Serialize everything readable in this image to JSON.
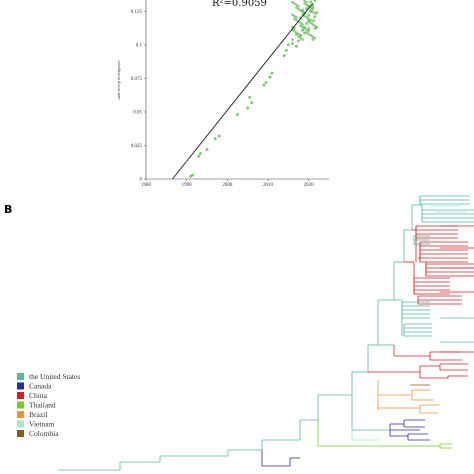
{
  "panel_b_label": "B",
  "chart_data": {
    "type": "scatter",
    "title": "",
    "xlabel": "",
    "ylabel": "root-to-tip divergence",
    "xlim": [
      1980,
      2025
    ],
    "ylim": [
      0,
      0.135
    ],
    "x_ticks": [
      "1980",
      "1990",
      "2000",
      "2010",
      "2020"
    ],
    "y_ticks": [
      "0",
      "0.025",
      "0.05",
      "0.075",
      "0.1",
      "0.125"
    ],
    "annotation": "R²=0.9059",
    "grid": false,
    "point_color": "#6abf62",
    "line_color": "#1a1a1a",
    "regression": {
      "x0_intercept": 1986.5,
      "x_end": 2021,
      "y_end": 0.131
    },
    "points": [
      [
        1991,
        0.002
      ],
      [
        1991.5,
        0.003
      ],
      [
        1993,
        0.017
      ],
      [
        1993.4,
        0.019
      ],
      [
        1995,
        0.022
      ],
      [
        1997,
        0.03
      ],
      [
        1998,
        0.032
      ],
      [
        2002.5,
        0.048
      ],
      [
        2005,
        0.053
      ],
      [
        2006,
        0.057
      ],
      [
        2005.5,
        0.061
      ],
      [
        2009,
        0.07
      ],
      [
        2009.5,
        0.072
      ],
      [
        2010.5,
        0.076
      ],
      [
        2011,
        0.079
      ],
      [
        2014,
        0.092
      ],
      [
        2014.5,
        0.096
      ],
      [
        2015,
        0.1
      ],
      [
        2016,
        0.101
      ],
      [
        2017,
        0.099
      ],
      [
        2017.5,
        0.103
      ],
      [
        2018,
        0.107
      ],
      [
        2018.5,
        0.111
      ],
      [
        2019,
        0.113
      ],
      [
        2019.5,
        0.116
      ],
      [
        2020,
        0.118
      ],
      [
        2020,
        0.122
      ],
      [
        2020.5,
        0.125
      ],
      [
        2021,
        0.128
      ],
      [
        2021,
        0.13
      ],
      [
        2019,
        0.124
      ],
      [
        2019.5,
        0.127
      ],
      [
        2018,
        0.12
      ],
      [
        2020.5,
        0.132
      ],
      [
        2021.2,
        0.118
      ],
      [
        2019,
        0.109
      ],
      [
        2020,
        0.112
      ],
      [
        2017,
        0.108
      ],
      [
        2021.5,
        0.121
      ],
      [
        2022,
        0.124
      ],
      [
        2022,
        0.113
      ],
      [
        2018.5,
        0.126
      ],
      [
        2020,
        0.129
      ]
    ]
  },
  "legend": {
    "items": [
      {
        "label": "the United States",
        "color": "#59b89c"
      },
      {
        "label": "Canada",
        "color": "#1f2fa8"
      },
      {
        "label": "China",
        "color": "#d3202a"
      },
      {
        "label": "Thailand",
        "color": "#6fcf2b"
      },
      {
        "label": "Brazil",
        "color": "#e9943a"
      },
      {
        "label": "Vietnam",
        "color": "#a8e6cf"
      },
      {
        "label": "Colombia",
        "color": "#8b5a1a"
      }
    ]
  }
}
